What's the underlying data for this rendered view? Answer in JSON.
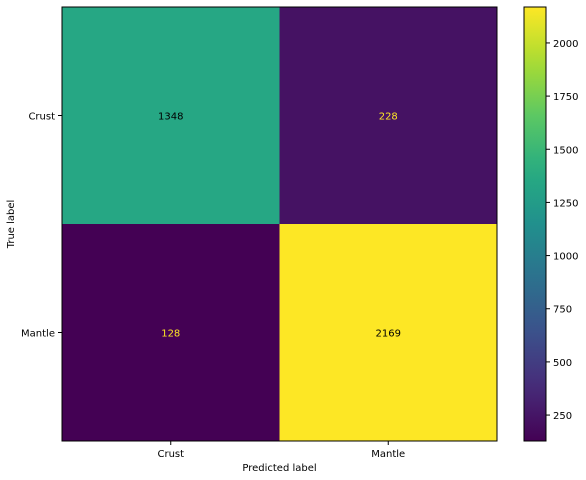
{
  "chart_data": {
    "type": "heatmap",
    "title": "",
    "xlabel": "Predicted label",
    "ylabel": "True label",
    "x_categories": [
      "Crust",
      "Mantle"
    ],
    "y_categories": [
      "Crust",
      "Mantle"
    ],
    "values": [
      [
        1348,
        228
      ],
      [
        128,
        2169
      ]
    ],
    "colormap": "viridis",
    "colorbar": {
      "range": [
        128,
        2169
      ],
      "ticks": [
        250,
        500,
        750,
        1000,
        1250,
        1500,
        1750,
        2000
      ]
    },
    "grid": false
  }
}
